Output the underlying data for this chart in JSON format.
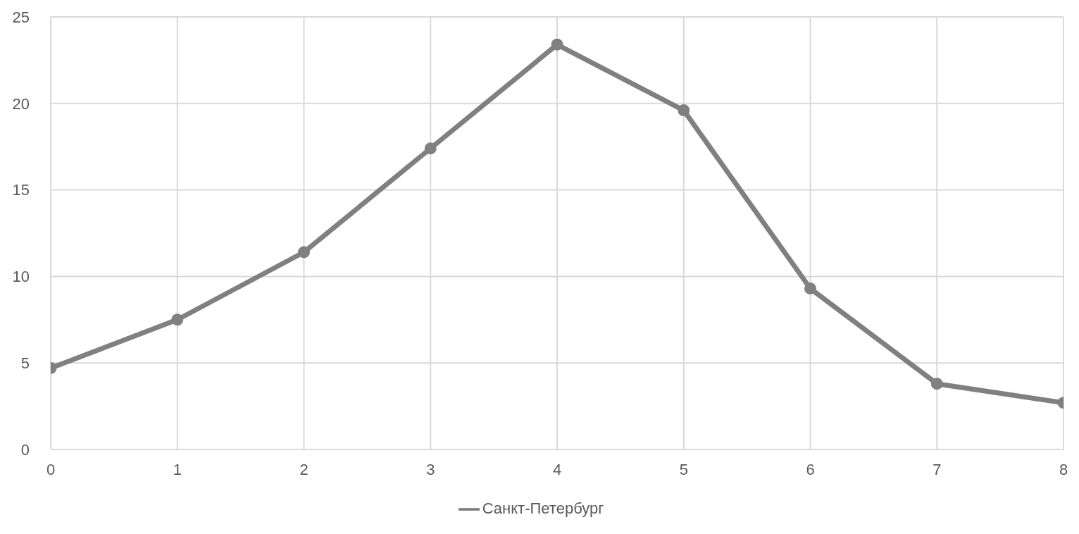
{
  "chart_data": {
    "type": "line",
    "x": [
      0,
      1,
      2,
      3,
      4,
      5,
      6,
      7,
      8
    ],
    "series": [
      {
        "name": "Санкт-Петербург",
        "color": "#808080",
        "values": [
          4.7,
          7.5,
          11.4,
          17.4,
          23.4,
          19.6,
          9.3,
          3.8,
          2.7
        ]
      }
    ],
    "xlim": [
      0,
      8
    ],
    "xticks": [
      0,
      1,
      2,
      3,
      4,
      5,
      6,
      7,
      8
    ],
    "ylim": [
      0,
      25
    ],
    "yticks": [
      0,
      5,
      10,
      15,
      20,
      25
    ],
    "grid": true,
    "legend": "bottom",
    "marker": "circle",
    "line_style": "solid"
  }
}
